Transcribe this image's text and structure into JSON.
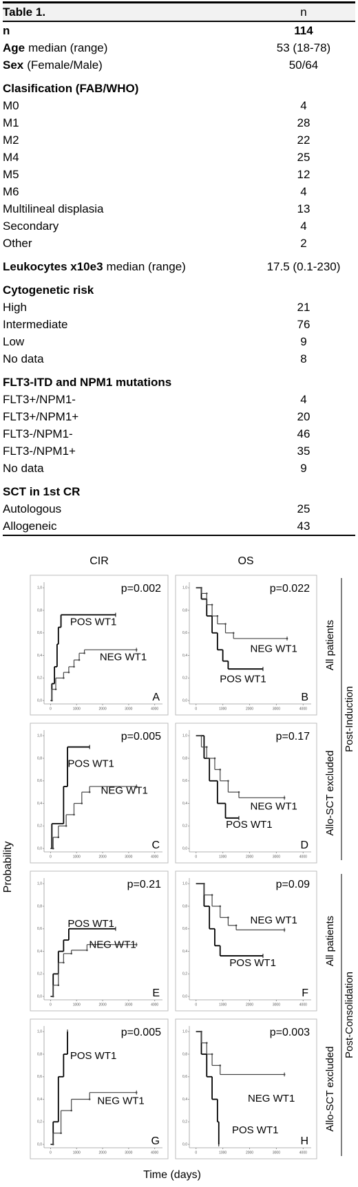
{
  "table": {
    "title": "Table 1.",
    "column_header": "n",
    "summary": [
      {
        "label": "n",
        "value": 114
      },
      {
        "label": "Age",
        "detail": "median (range)",
        "value": "53 (18-78)"
      },
      {
        "label": "Sex",
        "detail": "(Female/Male)",
        "value": "50/64"
      }
    ],
    "sections": [
      {
        "heading": "Clasification (FAB/WHO)",
        "rows": [
          {
            "label": "M0",
            "value": 4
          },
          {
            "label": "M1",
            "value": 28
          },
          {
            "label": "M2",
            "value": 22
          },
          {
            "label": "M4",
            "value": 25
          },
          {
            "label": "M5",
            "value": 12
          },
          {
            "label": "M6",
            "value": 4
          },
          {
            "label": "Multilineal displasia",
            "value": 13
          },
          {
            "label": "Secondary",
            "value": 4
          },
          {
            "label": "Other",
            "value": 2
          }
        ]
      },
      {
        "heading": "Leukocytes x10e3",
        "detail": "median (range)",
        "value": "17.5 (0.1-230)"
      },
      {
        "heading": "Cytogenetic risk",
        "rows": [
          {
            "label": "High",
            "value": 21
          },
          {
            "label": "Intermediate",
            "value": 76
          },
          {
            "label": "Low",
            "value": 9
          },
          {
            "label": "No data",
            "value": 8
          }
        ]
      },
      {
        "heading": "FLT3-ITD and NPM1 mutations",
        "rows": [
          {
            "label": "FLT3+/NPM1-",
            "value": 4
          },
          {
            "label": "FLT3+/NPM1+",
            "value": 20
          },
          {
            "label": "FLT3-/NPM1-",
            "value": 46
          },
          {
            "label": "FLT3-/NPM1+",
            "value": 35
          },
          {
            "label": "No data",
            "value": 9
          }
        ]
      },
      {
        "heading": "SCT in 1st CR",
        "rows": [
          {
            "label": "Autologous",
            "value": 25
          },
          {
            "label": "Allogeneic",
            "value": 43
          }
        ]
      }
    ]
  },
  "figure": {
    "column_titles": [
      "CIR",
      "OS"
    ],
    "row_labels": [
      "All patients",
      "Allo-SCT excluded",
      "All patients",
      "Allo-SCT excluded"
    ],
    "group_labels": [
      "Post-Induction",
      "Post-Consolidation"
    ],
    "y_label": "Probability",
    "x_label": "Time (days)"
  },
  "chart_data": [
    {
      "type": "step",
      "panel": "A",
      "annotation": "p=0.002",
      "xlim": [
        -250,
        4300
      ],
      "ylim": [
        -0.03,
        1.05
      ],
      "xticks": [
        0,
        1000,
        2000,
        3000,
        4000
      ],
      "yticks": [
        {
          "value": 0,
          "label": "0,0"
        },
        {
          "value": 0.2,
          "label": "0,2"
        },
        {
          "value": 0.4,
          "label": "0,4"
        },
        {
          "value": 0.6,
          "label": "0,6"
        },
        {
          "value": 0.8,
          "label": "0,8"
        },
        {
          "value": 1,
          "label": "1,0"
        }
      ],
      "series": [
        {
          "name": "POS WT1",
          "color": "#000000",
          "x": [
            0,
            50,
            150,
            250,
            300,
            400,
            2500
          ],
          "values": [
            0,
            0.15,
            0.3,
            0.5,
            0.65,
            0.76,
            0.76
          ]
        },
        {
          "name": "NEG WT1",
          "color": "#444444",
          "x": [
            0,
            50,
            200,
            500,
            700,
            900,
            1100,
            1300,
            3300
          ],
          "values": [
            0,
            0.1,
            0.2,
            0.25,
            0.3,
            0.36,
            0.42,
            0.45,
            0.45
          ]
        }
      ]
    },
    {
      "type": "step",
      "panel": "B",
      "annotation": "p=0.022",
      "xlim": [
        -250,
        4300
      ],
      "ylim": [
        -0.03,
        1.05
      ],
      "xticks": [
        0,
        1000,
        2000,
        3000,
        4000
      ],
      "yticks": [
        {
          "value": 0,
          "label": "0,0"
        },
        {
          "value": 0.2,
          "label": "0,2"
        },
        {
          "value": 0.4,
          "label": "0,4"
        },
        {
          "value": 0.6,
          "label": "0,6"
        },
        {
          "value": 0.8,
          "label": "0,8"
        },
        {
          "value": 1,
          "label": "1,0"
        }
      ],
      "series": [
        {
          "name": "POS WT1",
          "color": "#000000",
          "x": [
            0,
            200,
            400,
            600,
            800,
            1000,
            1200,
            2500
          ],
          "values": [
            1,
            0.9,
            0.75,
            0.6,
            0.45,
            0.35,
            0.28,
            0.28
          ]
        },
        {
          "name": "NEG WT1",
          "color": "#444444",
          "x": [
            0,
            200,
            400,
            600,
            800,
            1100,
            1400,
            3400
          ],
          "values": [
            1,
            0.95,
            0.85,
            0.75,
            0.68,
            0.6,
            0.55,
            0.55
          ]
        }
      ]
    },
    {
      "type": "step",
      "panel": "C",
      "annotation": "p=0.005",
      "xlim": [
        -250,
        4300
      ],
      "ylim": [
        -0.03,
        1.05
      ],
      "xticks": [
        0,
        1000,
        2000,
        3000,
        4000
      ],
      "yticks": [
        {
          "value": 0,
          "label": "0,0"
        },
        {
          "value": 0.2,
          "label": "0,2"
        },
        {
          "value": 0.4,
          "label": "0,4"
        },
        {
          "value": 0.6,
          "label": "0,6"
        },
        {
          "value": 0.8,
          "label": "0,8"
        },
        {
          "value": 1,
          "label": "1,0"
        }
      ],
      "series": [
        {
          "name": "POS WT1",
          "color": "#000000",
          "x": [
            0,
            50,
            500,
            650,
            1500
          ],
          "values": [
            0,
            0.22,
            0.55,
            0.9,
            0.9
          ]
        },
        {
          "name": "NEG WT1",
          "color": "#444444",
          "x": [
            0,
            100,
            300,
            600,
            900,
            1200,
            1500,
            3300
          ],
          "values": [
            0,
            0.1,
            0.2,
            0.3,
            0.4,
            0.5,
            0.55,
            0.55
          ]
        }
      ]
    },
    {
      "type": "step",
      "panel": "D",
      "annotation": "p=0.17",
      "xlim": [
        -250,
        4300
      ],
      "ylim": [
        -0.03,
        1.05
      ],
      "xticks": [
        0,
        1000,
        2000,
        3000,
        4000
      ],
      "yticks": [
        {
          "value": 0,
          "label": "0,0"
        },
        {
          "value": 0.2,
          "label": "0,2"
        },
        {
          "value": 0.4,
          "label": "0,4"
        },
        {
          "value": 0.6,
          "label": "0,6"
        },
        {
          "value": 0.8,
          "label": "0,8"
        },
        {
          "value": 1,
          "label": "1,0"
        }
      ],
      "series": [
        {
          "name": "POS WT1",
          "color": "#000000",
          "x": [
            0,
            300,
            500,
            800,
            1100,
            1600
          ],
          "values": [
            1,
            0.8,
            0.6,
            0.4,
            0.27,
            0.27
          ]
        },
        {
          "name": "NEG WT1",
          "color": "#444444",
          "x": [
            0,
            200,
            400,
            700,
            900,
            1200,
            1600,
            3300
          ],
          "values": [
            1,
            0.9,
            0.8,
            0.7,
            0.6,
            0.5,
            0.45,
            0.45
          ]
        }
      ]
    },
    {
      "type": "step",
      "panel": "E",
      "annotation": "p=0.21",
      "xlim": [
        -250,
        4300
      ],
      "ylim": [
        -0.03,
        1.05
      ],
      "xticks": [
        0,
        1000,
        2000,
        3000,
        4000
      ],
      "yticks": [
        {
          "value": 0,
          "label": "0,0"
        },
        {
          "value": 0.2,
          "label": "0,2"
        },
        {
          "value": 0.4,
          "label": "0,4"
        },
        {
          "value": 0.6,
          "label": "0,6"
        },
        {
          "value": 0.8,
          "label": "0,8"
        },
        {
          "value": 1,
          "label": "1,0"
        }
      ],
      "series": [
        {
          "name": "POS WT1",
          "color": "#000000",
          "x": [
            0,
            100,
            300,
            500,
            700,
            2500
          ],
          "values": [
            0,
            0.2,
            0.4,
            0.5,
            0.6,
            0.6
          ]
        },
        {
          "name": "NEG WT1",
          "color": "#444444",
          "x": [
            0,
            100,
            300,
            500,
            800,
            1400,
            3300
          ],
          "values": [
            0,
            0.1,
            0.3,
            0.38,
            0.41,
            0.46,
            0.46
          ]
        }
      ]
    },
    {
      "type": "step",
      "panel": "F",
      "annotation": "p=0.09",
      "xlim": [
        -250,
        4300
      ],
      "ylim": [
        -0.03,
        1.05
      ],
      "xticks": [
        0,
        1000,
        2000,
        3000,
        4000
      ],
      "yticks": [
        {
          "value": 0,
          "label": "0,0"
        },
        {
          "value": 0.2,
          "label": "0,2"
        },
        {
          "value": 0.4,
          "label": "0,4"
        },
        {
          "value": 0.6,
          "label": "0,6"
        },
        {
          "value": 0.8,
          "label": "0,8"
        },
        {
          "value": 1,
          "label": "1,0"
        }
      ],
      "series": [
        {
          "name": "POS WT1",
          "color": "#000000",
          "x": [
            0,
            300,
            500,
            700,
            900,
            2500
          ],
          "values": [
            1,
            0.8,
            0.6,
            0.45,
            0.36,
            0.36
          ]
        },
        {
          "name": "NEG WT1",
          "color": "#444444",
          "x": [
            0,
            300,
            600,
            900,
            1200,
            1500,
            3300
          ],
          "values": [
            1,
            0.9,
            0.8,
            0.7,
            0.63,
            0.59,
            0.59
          ]
        }
      ]
    },
    {
      "type": "step",
      "panel": "G",
      "annotation": "p=0.005",
      "xlim": [
        -250,
        4300
      ],
      "ylim": [
        -0.03,
        1.05
      ],
      "xticks": [
        0,
        1000,
        2000,
        3000,
        4000
      ],
      "yticks": [
        {
          "value": 0,
          "label": "0,0"
        },
        {
          "value": 0.2,
          "label": "0,2"
        },
        {
          "value": 0.4,
          "label": "0,4"
        },
        {
          "value": 0.6,
          "label": "0,6"
        },
        {
          "value": 0.8,
          "label": "0,8"
        },
        {
          "value": 1,
          "label": "1,0"
        }
      ],
      "series": [
        {
          "name": "POS WT1",
          "color": "#000000",
          "x": [
            0,
            100,
            300,
            500,
            650
          ],
          "values": [
            0,
            0.2,
            0.6,
            0.8,
            1
          ]
        },
        {
          "name": "NEG WT1",
          "color": "#444444",
          "x": [
            0,
            100,
            400,
            800,
            1500,
            3300
          ],
          "values": [
            0,
            0.1,
            0.3,
            0.4,
            0.46,
            0.46
          ]
        }
      ]
    },
    {
      "type": "step",
      "panel": "H",
      "annotation": "p=0.003",
      "xlim": [
        -250,
        4300
      ],
      "ylim": [
        -0.03,
        1.05
      ],
      "xticks": [
        0,
        1000,
        2000,
        3000,
        4000
      ],
      "yticks": [
        {
          "value": 0,
          "label": "0,0"
        },
        {
          "value": 0.2,
          "label": "0,2"
        },
        {
          "value": 0.4,
          "label": "0,4"
        },
        {
          "value": 0.6,
          "label": "0,6"
        },
        {
          "value": 0.8,
          "label": "0,8"
        },
        {
          "value": 1,
          "label": "1,0"
        }
      ],
      "series": [
        {
          "name": "POS WT1",
          "color": "#000000",
          "x": [
            0,
            200,
            400,
            600,
            800,
            850
          ],
          "values": [
            1,
            0.8,
            0.6,
            0.4,
            0.2,
            0
          ]
        },
        {
          "name": "NEG WT1",
          "color": "#444444",
          "x": [
            0,
            200,
            400,
            600,
            900,
            3300
          ],
          "values": [
            1,
            0.9,
            0.8,
            0.7,
            0.62,
            0.62
          ]
        }
      ]
    }
  ]
}
